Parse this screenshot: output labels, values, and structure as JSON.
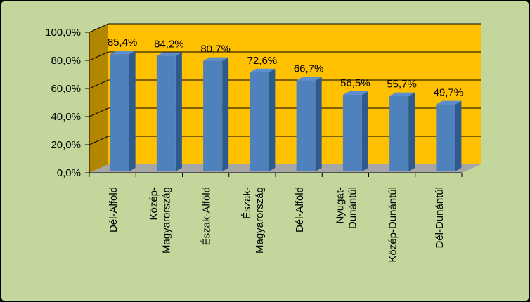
{
  "chart_data": {
    "type": "bar",
    "categories": [
      "Dél-Alföld",
      "Közép-\nMagyarország",
      "Észak-Alföld",
      "Észak-\nMagyarország",
      "Dél-Alföld",
      "Nyugat-\nDunántúl",
      "Közép-Dunántúl",
      "Dél-Dunántúl"
    ],
    "values": [
      85.4,
      84.2,
      80.7,
      72.6,
      66.7,
      56.5,
      55.7,
      49.7
    ],
    "data_labels": [
      "85,4%",
      "84,2%",
      "80,7%",
      "72,6%",
      "66,7%",
      "56,5%",
      "55,7%",
      "49,7%"
    ],
    "yticks": [
      "0,0%",
      "20,0%",
      "40,0%",
      "60,0%",
      "80,0%",
      "100,0%"
    ],
    "ylim": [
      0,
      100
    ],
    "title": "",
    "xlabel": "",
    "ylabel": "",
    "grid": true,
    "legend": "none",
    "colors": {
      "background": "#c3d69b",
      "wall": "#ffc000",
      "floor": "#a6a6a6",
      "bar_front": "#4f81bd",
      "bar_side": "#2e5a8e",
      "bar_top": "#5b8fcf",
      "gridline": "#000000"
    }
  }
}
